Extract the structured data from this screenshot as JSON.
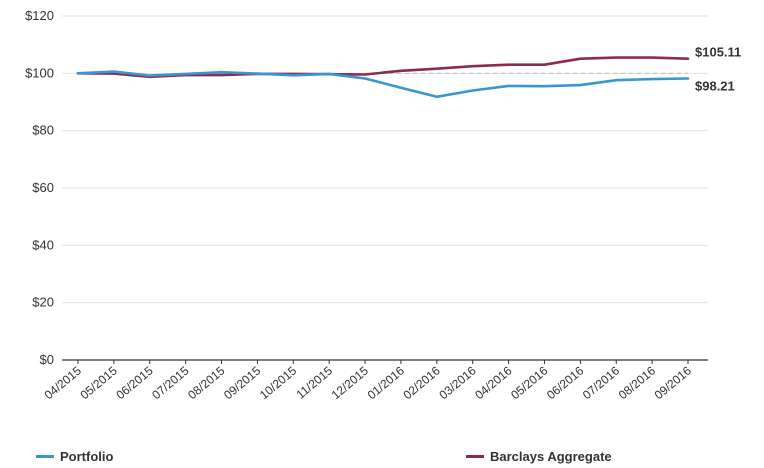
{
  "chart_data": {
    "type": "line",
    "categories": [
      "04/2015",
      "05/2015",
      "06/2015",
      "07/2015",
      "08/2015",
      "09/2015",
      "10/2015",
      "11/2015",
      "12/2015",
      "01/2016",
      "02/2016",
      "03/2016",
      "04/2016",
      "05/2016",
      "06/2016",
      "07/2016",
      "08/2016",
      "09/2016"
    ],
    "series": [
      {
        "name": "Portfolio",
        "color": "#3a96d0",
        "values": [
          100,
          100.6,
          99.2,
          99.8,
          100.4,
          99.9,
          99.3,
          99.8,
          98.2,
          95,
          91.8,
          94,
          95.6,
          95.5,
          95.9,
          97.6,
          98,
          98.21
        ]
      },
      {
        "name": "Barclays Aggregate",
        "color": "#8e2a4f",
        "values": [
          100,
          99.9,
          98.8,
          99.4,
          99.4,
          99.8,
          99.8,
          99.7,
          99.6,
          100.9,
          101.6,
          102.5,
          103,
          103,
          105.1,
          105.5,
          105.5,
          105.11
        ]
      }
    ],
    "end_labels": [
      "$105.11",
      "$98.21"
    ],
    "yticks": [
      "$0",
      "$20",
      "$40",
      "$60",
      "$80",
      "$100",
      "$120"
    ],
    "ylim": [
      0,
      120
    ],
    "grid": true,
    "legend_position": "bottom"
  }
}
